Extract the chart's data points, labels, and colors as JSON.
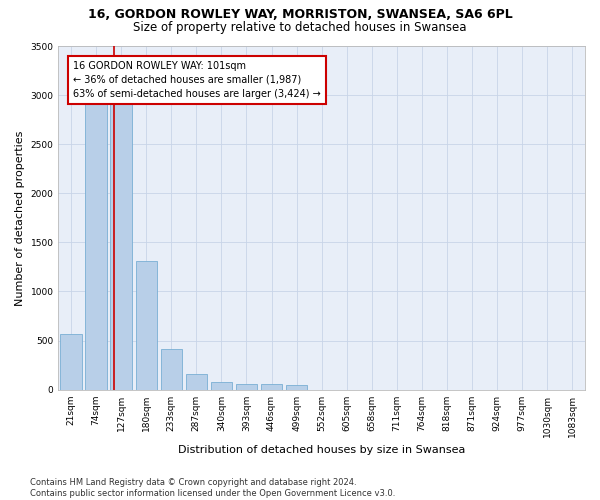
{
  "title": "16, GORDON ROWLEY WAY, MORRISTON, SWANSEA, SA6 6PL",
  "subtitle": "Size of property relative to detached houses in Swansea",
  "xlabel": "Distribution of detached houses by size in Swansea",
  "ylabel": "Number of detached properties",
  "footer": "Contains HM Land Registry data © Crown copyright and database right 2024.\nContains public sector information licensed under the Open Government Licence v3.0.",
  "categories": [
    "21sqm",
    "74sqm",
    "127sqm",
    "180sqm",
    "233sqm",
    "287sqm",
    "340sqm",
    "393sqm",
    "446sqm",
    "499sqm",
    "552sqm",
    "605sqm",
    "658sqm",
    "711sqm",
    "764sqm",
    "818sqm",
    "871sqm",
    "924sqm",
    "977sqm",
    "1030sqm",
    "1083sqm"
  ],
  "values": [
    570,
    2920,
    2920,
    1310,
    415,
    155,
    80,
    60,
    55,
    50,
    0,
    0,
    0,
    0,
    0,
    0,
    0,
    0,
    0,
    0,
    0
  ],
  "bar_color": "#b8cfe8",
  "bar_edge_color": "#7aafd4",
  "ylim": [
    0,
    3500
  ],
  "yticks": [
    0,
    500,
    1000,
    1500,
    2000,
    2500,
    3000,
    3500
  ],
  "property_line_x": 1.72,
  "annotation_text": "16 GORDON ROWLEY WAY: 101sqm\n← 36% of detached houses are smaller (1,987)\n63% of semi-detached houses are larger (3,424) →",
  "annotation_box_color": "#ffffff",
  "annotation_box_edge": "#cc0000",
  "vline_color": "#cc0000",
  "grid_color": "#c8d4e8",
  "bg_color": "#e8eef8",
  "title_fontsize": 9,
  "subtitle_fontsize": 8.5,
  "footer_fontsize": 6,
  "ylabel_fontsize": 8,
  "xlabel_fontsize": 8,
  "tick_fontsize": 6.5,
  "annot_fontsize": 7
}
